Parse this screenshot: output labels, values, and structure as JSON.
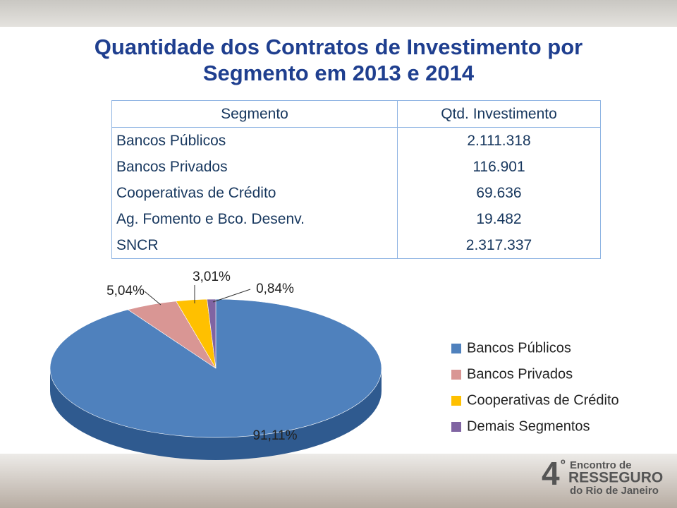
{
  "title": [
    "Quantidade dos Contratos de Investimento por",
    "Segmento em 2013 e 2014"
  ],
  "table": {
    "header": [
      "Segmento",
      "Qtd. Investimento"
    ],
    "rows": [
      [
        "Bancos Públicos",
        "2.111.318"
      ],
      [
        "Bancos Privados",
        "116.901"
      ],
      [
        "Cooperativas de Crédito",
        "69.636"
      ],
      [
        "Ag. Fomento e Bco. Desenv.",
        "19.482"
      ],
      [
        "SNCR",
        "2.317.337"
      ]
    ]
  },
  "chart_data": {
    "type": "pie",
    "categories": [
      "Bancos Públicos",
      "Bancos Privados",
      "Cooperativas de Crédito",
      "Demais Segmentos"
    ],
    "values": [
      91.11,
      5.04,
      3.01,
      0.84
    ],
    "value_labels": [
      "91,11%",
      "5,04%",
      "3,01%",
      "0,84%"
    ],
    "colors": [
      "#4f81bd",
      "#d99694",
      "#ffc000",
      "#8064a2"
    ],
    "legend": "right"
  },
  "logo": {
    "number": "4",
    "ordinal": "º",
    "lines": [
      "Encontro de",
      "RESSEGURO",
      "do Rio de Janeiro"
    ]
  }
}
